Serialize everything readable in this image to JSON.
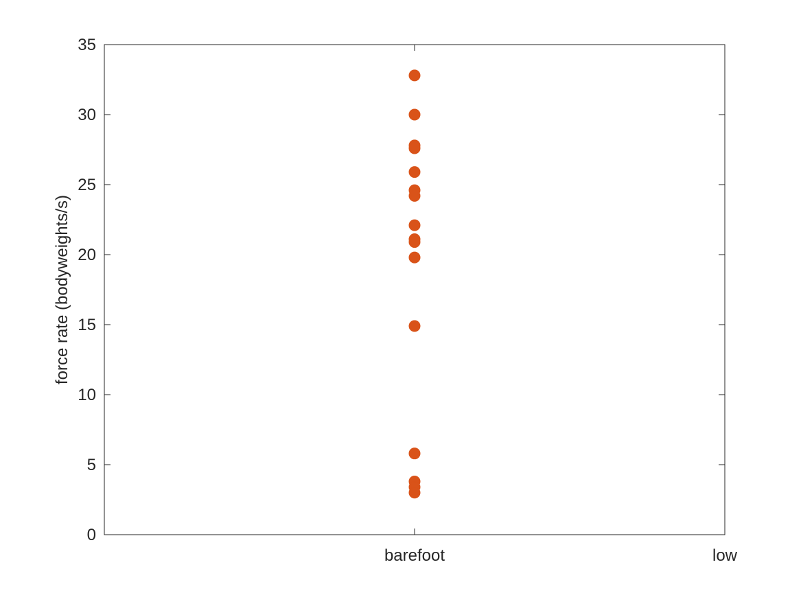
{
  "chart_data": {
    "type": "scatter",
    "title": "",
    "xlabel": "",
    "ylabel": "force rate (bodyweights/s)",
    "categories": [
      "barefoot",
      "low"
    ],
    "x_tick_labels": [
      "barefoot",
      "low"
    ],
    "ylim": [
      0,
      35
    ],
    "y_ticks": [
      0,
      5,
      10,
      15,
      20,
      25,
      30,
      35
    ],
    "y_tick_labels": [
      "0",
      "5",
      "10",
      "15",
      "20",
      "25",
      "30",
      "35"
    ],
    "grid": false,
    "legend": "none",
    "marker_color": "#d95319",
    "series": [
      {
        "category": "barefoot",
        "values": [
          32.8,
          30.0,
          27.8,
          27.6,
          25.9,
          24.6,
          24.2,
          22.1,
          21.1,
          20.9,
          19.8,
          14.9,
          5.8,
          3.8,
          3.4,
          3.0
        ]
      }
    ]
  },
  "colors": {
    "axis": "#262626",
    "marker": "#d95319",
    "background": "#ffffff"
  }
}
